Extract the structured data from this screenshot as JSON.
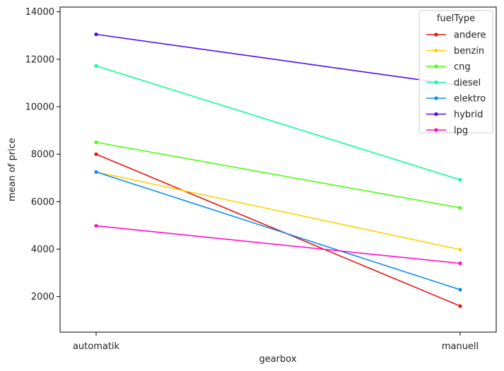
{
  "chart_data": {
    "type": "line",
    "title": "",
    "xlabel": "gearbox",
    "ylabel": "mean of price",
    "categories": [
      "automatik",
      "manuell"
    ],
    "ylim": [
      500,
      14200
    ],
    "yticks": [
      2000,
      4000,
      6000,
      8000,
      10000,
      12000,
      14000
    ],
    "grid": false,
    "legend": {
      "title": "fuelType",
      "placement": "top-right"
    },
    "series": [
      {
        "name": "andere",
        "color": "#e8120f",
        "values": [
          8000,
          1600
        ]
      },
      {
        "name": "benzin",
        "color": "#ffd300",
        "values": [
          7250,
          3980
        ]
      },
      {
        "name": "cng",
        "color": "#4aff0c",
        "values": [
          8500,
          5740
        ]
      },
      {
        "name": "diesel",
        "color": "#0cff9a",
        "values": [
          11720,
          6920
        ]
      },
      {
        "name": "elektro",
        "color": "#0c8cf2",
        "values": [
          7250,
          2290
        ]
      },
      {
        "name": "hybrid",
        "color": "#4d0cf2",
        "values": [
          13050,
          10900
        ]
      },
      {
        "name": "lpg",
        "color": "#ff0ccc",
        "values": [
          4980,
          3400
        ]
      }
    ]
  }
}
